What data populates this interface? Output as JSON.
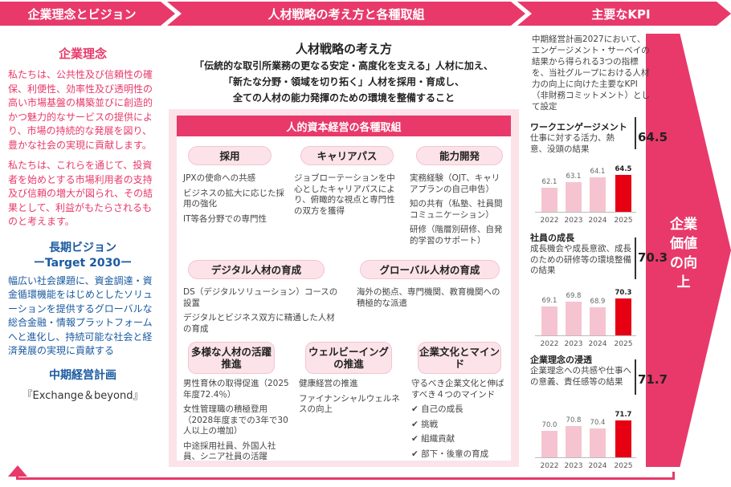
{
  "headers": {
    "left": "企業理念とビジョン",
    "middle": "人材戦略の考え方と各種取組",
    "right": "主要なKPI"
  },
  "left": {
    "philosophy_title": "企業理念",
    "philosophy_p1": "私たちは、公共性及び信頼性の確保、利便性、効率性及び透明性の高い市場基盤の構築並びに創造的かつ魅力的なサービスの提供により、市場の持続的な発展を図り、豊かな社会の実現に貢献します。",
    "philosophy_p2": "私たちは、これらを通じて、投資者を始めとする市場利用者の支持及び信頼の増大が図られ、その結果として、利益がもたらされるものと考えます。",
    "vision_title": "長期ビジョン",
    "vision_sub": "ーTarget 2030ー",
    "vision_body": "幅広い社会課題に、資金調達・資金循環機能をはじめとしたソリューションを提供するグローバルな総合金融・情報プラットフォームへと進化し、持続可能な社会と経済発展の実現に貢献する",
    "plan_title": "中期経営計画",
    "plan_name": "『Exchange＆beyond』"
  },
  "strategy": {
    "title": "人材戦略の考え方",
    "line1": "「伝統的な取引所業務の更なる安定・高度化を支える」人材に加え、",
    "line2": "「新たな分野・領域を切り拓く」人材を採用・育成し、",
    "line3": "全ての人材の能力発揮のための環境を整備すること",
    "section_title": "人的資本経営の各種取組"
  },
  "initiatives": [
    {
      "title": "採用",
      "items": [
        "JPXの使命への共感",
        "ビジネスの拡大に応じた採用の強化",
        "IT等各分野での専門性"
      ]
    },
    {
      "title": "キャリアパス",
      "items": [
        "ジョブローテーションを中心としたキャリアパスにより、俯瞰的な視点と専門性の双方を獲得"
      ]
    },
    {
      "title": "能力開発",
      "items": [
        "実務経験（OJT、キャリアプランの自己申告）",
        "知の共有（私塾、社員間コミュニケーション）",
        "研修（階層別研修、自発的学習のサポート）"
      ]
    },
    {
      "title": "デジタル人材の育成",
      "items": [
        "DS（デジタルソリューション）コースの設置",
        "デジタルとビジネス双方に精通した人材の育成"
      ]
    },
    {
      "title": "グローバル人材の育成",
      "items": [
        "海外の拠点、専門機関、教育機関への積極的な派遣"
      ]
    },
    {
      "title": "多様な人材の活躍推進",
      "items": [
        "男性育休の取得促進（2025年度72.4％）",
        "女性管理職の積極登用（2028年度までの3年で30人以上の増加）",
        "中途採用社員、外国人社員、シニア社員の活躍"
      ]
    },
    {
      "title": "ウェルビーイングの推進",
      "items": [
        "健康経営の推進",
        "ファイナンシャルウェルネスの向上"
      ]
    },
    {
      "title": "企業文化とマインド",
      "items": [
        "守るべき企業文化と伸ばすべき４つのマインド",
        "✔ 自己の成長",
        "✔ 挑戦",
        "✔ 組織貢献",
        "✔ 部下・後輩の育成"
      ]
    }
  ],
  "kpi": {
    "intro": "中期経営計画2027において、エンゲージメント・サーベイの結果から得られる3つの指標を、当社グループにおける人材力の向上に向けた主要なKPI（非財務コミットメント）として設定",
    "items": [
      {
        "title": "ワークエンゲージメント",
        "desc": "仕事に対する活力、熱意、没頭の結果",
        "value": "64.5",
        "years": [
          "2022",
          "2023",
          "2024",
          "2025"
        ],
        "values": [
          62.1,
          63.1,
          64.1,
          64.5
        ],
        "labels": [
          "62.1",
          "63.1",
          "64.1",
          "64.5"
        ]
      },
      {
        "title": "社員の成長",
        "desc": "成長機会や成長意欲、成長のための研修等の環境整備の結果",
        "value": "70.3",
        "years": [
          "2022",
          "2023",
          "2024",
          "2025"
        ],
        "values": [
          69.1,
          69.8,
          68.9,
          70.3
        ],
        "labels": [
          "69.1",
          "69.8",
          "68.9",
          "70.3"
        ]
      },
      {
        "title": "企業理念の浸透",
        "desc": "企業理念への共感や仕事への意義、責任感等の結果",
        "value": "71.7",
        "years": [
          "2022",
          "2023",
          "2024",
          "2025"
        ],
        "values": [
          70.0,
          70.8,
          70.4,
          71.7
        ],
        "labels": [
          "70.0",
          "70.8",
          "70.4",
          "71.7"
        ]
      }
    ],
    "result": "企業価値の向上",
    "colors": {
      "bar": "#f6c4d0",
      "highlight": "#e60012",
      "accent": "#e8396a"
    }
  }
}
